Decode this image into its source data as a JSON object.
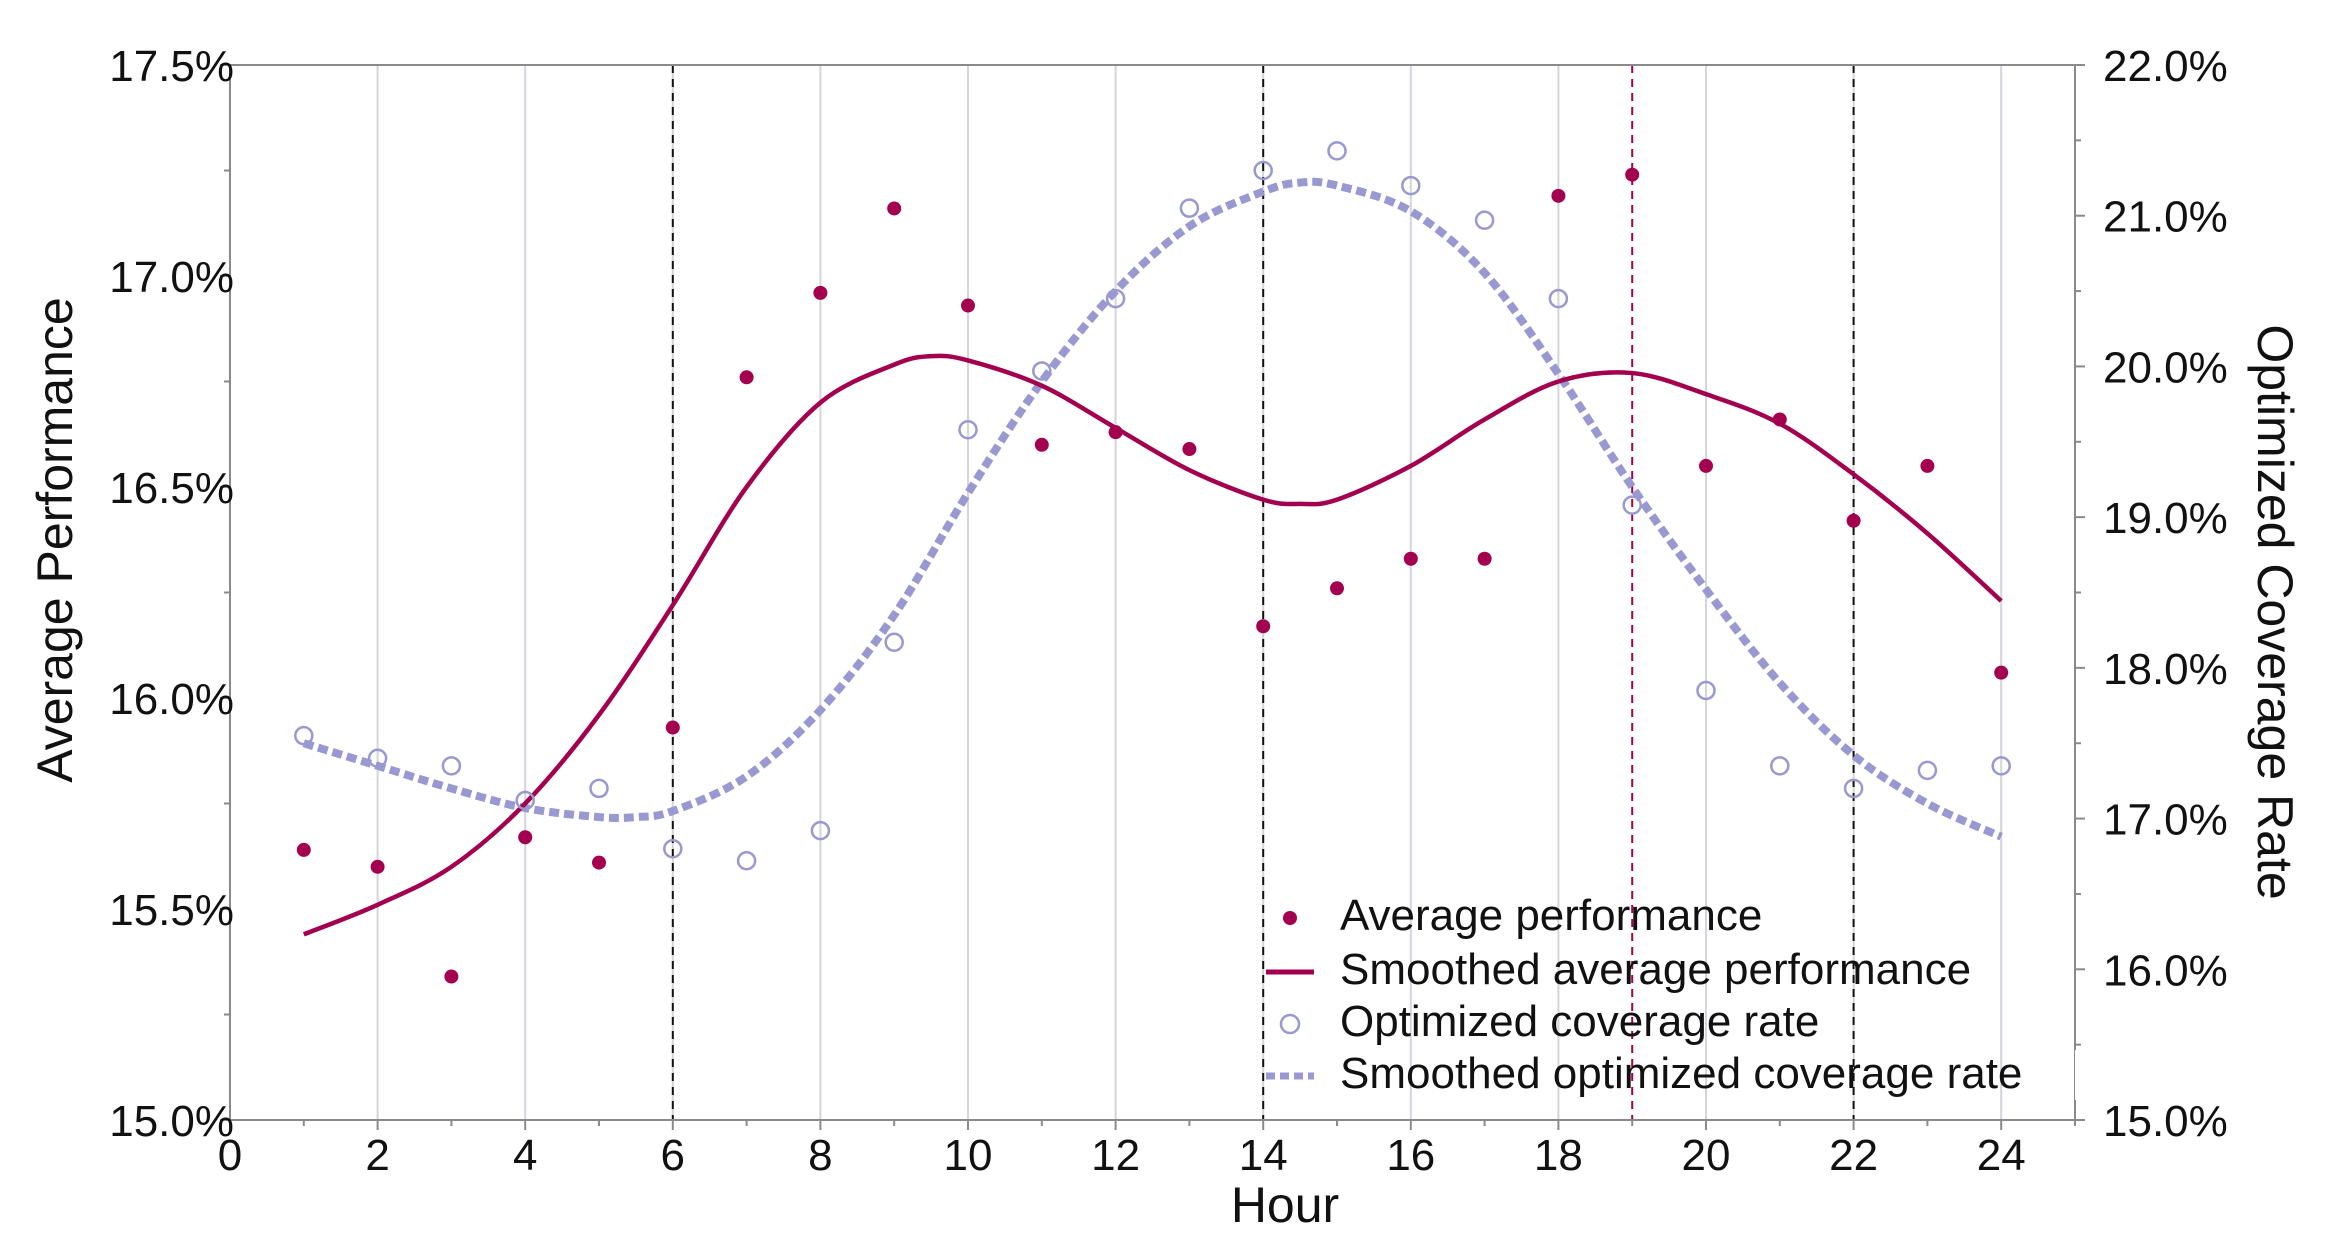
{
  "chart_data": {
    "type": "scatter",
    "title": "",
    "xlabel": "Hour",
    "ylabel_left": "Average Performance",
    "ylabel_right": "Optimized Coverage Rate",
    "xlim": [
      0,
      25
    ],
    "ylim_left": [
      15.0,
      17.5
    ],
    "ylim_right": [
      15.0,
      22.0
    ],
    "x_ticks": [
      0,
      2,
      4,
      6,
      8,
      10,
      12,
      14,
      16,
      18,
      20,
      22,
      24
    ],
    "y_left_ticks": [
      15.0,
      15.5,
      16.0,
      16.5,
      17.0,
      17.5
    ],
    "y_left_tick_labels": [
      "15.0%",
      "15.5%",
      "16.0%",
      "16.5%",
      "17.0%",
      "17.5%"
    ],
    "y_right_ticks": [
      15.0,
      16.0,
      17.0,
      18.0,
      19.0,
      20.0,
      21.0,
      22.0
    ],
    "y_right_tick_labels": [
      "15.0%",
      "16.0%",
      "17.0%",
      "18.0%",
      "19.0%",
      "20.0%",
      "21.0%",
      "22.0%"
    ],
    "grid_x": true,
    "vlines": [
      {
        "x": 6,
        "color": "#111111"
      },
      {
        "x": 14,
        "color": "#111111"
      },
      {
        "x": 19,
        "color": "#a3004f"
      },
      {
        "x": 22,
        "color": "#111111"
      }
    ],
    "series": [
      {
        "name": "Average performance",
        "kind": "points",
        "axis": "left",
        "color": "#a3004f",
        "x": [
          1,
          2,
          3,
          4,
          5,
          6,
          7,
          8,
          9,
          10,
          11,
          12,
          13,
          14,
          15,
          16,
          17,
          18,
          19,
          20,
          21,
          22,
          23,
          24
        ],
        "values": [
          15.64,
          15.6,
          15.34,
          15.67,
          15.61,
          15.93,
          16.76,
          16.96,
          17.16,
          16.93,
          16.6,
          16.63,
          16.59,
          16.17,
          16.26,
          16.33,
          16.33,
          17.19,
          17.24,
          16.55,
          16.66,
          16.42,
          16.55,
          16.06
        ]
      },
      {
        "name": "Smoothed average performance",
        "kind": "line",
        "axis": "left",
        "color": "#a3004f",
        "x": [
          1,
          2,
          3,
          4,
          5,
          6,
          7,
          8,
          9,
          9.5,
          10,
          11,
          12,
          13,
          14,
          14.5,
          15,
          16,
          17,
          18,
          19,
          20,
          21,
          22,
          23,
          24
        ],
        "values": [
          15.44,
          15.51,
          15.6,
          15.75,
          15.96,
          16.22,
          16.5,
          16.7,
          16.79,
          16.81,
          16.8,
          16.74,
          16.64,
          16.54,
          16.47,
          16.46,
          16.47,
          16.55,
          16.66,
          16.75,
          16.77,
          16.72,
          16.65,
          16.53,
          16.39,
          16.23
        ]
      },
      {
        "name": "Optimized coverage rate",
        "kind": "points",
        "axis": "right",
        "color": "#9a98d0",
        "x": [
          1,
          2,
          3,
          4,
          5,
          6,
          7,
          8,
          9,
          10,
          11,
          12,
          13,
          14,
          15,
          16,
          17,
          18,
          19,
          20,
          21,
          22,
          23,
          24
        ],
        "values": [
          17.55,
          17.4,
          17.35,
          17.12,
          17.2,
          16.8,
          16.72,
          16.92,
          18.17,
          19.58,
          19.97,
          20.45,
          21.05,
          21.3,
          21.43,
          21.2,
          20.97,
          20.45,
          19.08,
          17.85,
          17.35,
          17.2,
          17.32,
          17.35
        ]
      },
      {
        "name": "Smoothed optimized coverage rate",
        "kind": "dashed-line",
        "axis": "right",
        "color": "#9a98d0",
        "x": [
          1,
          2,
          3,
          4,
          5,
          5.5,
          6,
          7,
          8,
          9,
          10,
          11,
          12,
          13,
          14,
          14.5,
          15,
          16,
          17,
          18,
          19,
          20,
          21,
          22,
          23,
          24
        ],
        "values": [
          17.5,
          17.35,
          17.2,
          17.07,
          17.01,
          17.01,
          17.05,
          17.28,
          17.72,
          18.35,
          19.16,
          19.9,
          20.5,
          20.93,
          21.16,
          21.22,
          21.2,
          21.03,
          20.62,
          19.95,
          19.2,
          18.52,
          17.9,
          17.42,
          17.1,
          16.88
        ]
      }
    ],
    "legend": {
      "position": "bottom-right",
      "entries": [
        "Average performance",
        "Smoothed average performance",
        "Optimized coverage rate",
        "Smoothed optimized coverage rate"
      ]
    }
  }
}
